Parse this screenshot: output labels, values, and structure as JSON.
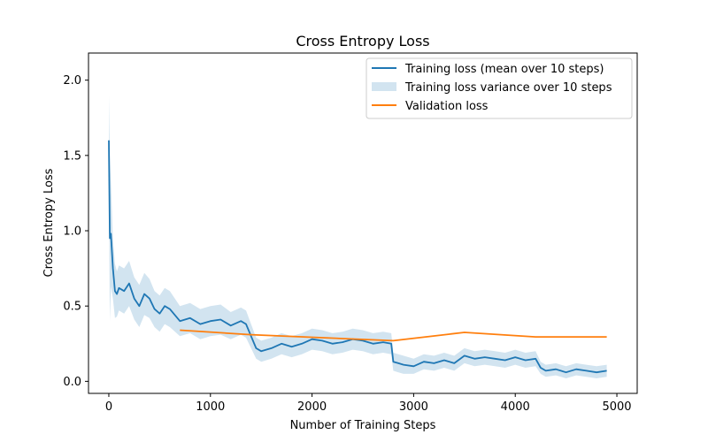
{
  "chart_data": {
    "type": "line",
    "title": "Cross Entropy Loss",
    "xlabel": "Number of Training Steps",
    "ylabel": "Cross Entropy Loss",
    "xlim": [
      -200,
      5200
    ],
    "ylim": [
      -0.08,
      2.18
    ],
    "xticks": [
      0,
      1000,
      2000,
      3000,
      4000,
      5000
    ],
    "yticks": [
      0.0,
      0.5,
      1.0,
      1.5,
      2.0
    ],
    "xtick_labels": [
      "0",
      "1000",
      "2000",
      "3000",
      "4000",
      "5000"
    ],
    "ytick_labels": [
      "0.0",
      "0.5",
      "1.0",
      "1.5",
      "2.0"
    ],
    "grid": false,
    "legend_position": "top-right",
    "colors": {
      "training": "#1f77b4",
      "variance": "#1f77b4",
      "validation": "#ff7f0e"
    },
    "series": [
      {
        "name": "Training loss (mean over 10 steps)",
        "kind": "line",
        "x": [
          0,
          10,
          20,
          40,
          60,
          80,
          100,
          150,
          200,
          250,
          300,
          350,
          400,
          450,
          500,
          550,
          600,
          700,
          800,
          900,
          1000,
          1100,
          1200,
          1300,
          1350,
          1400,
          1450,
          1500,
          1600,
          1700,
          1800,
          1900,
          2000,
          2100,
          2200,
          2300,
          2400,
          2500,
          2600,
          2700,
          2780,
          2800,
          2850,
          2900,
          3000,
          3100,
          3200,
          3300,
          3400,
          3500,
          3600,
          3700,
          3800,
          3900,
          4000,
          4100,
          4200,
          4250,
          4300,
          4400,
          4500,
          4600,
          4700,
          4800,
          4900
        ],
        "y": [
          1.6,
          0.95,
          0.98,
          0.75,
          0.6,
          0.58,
          0.62,
          0.6,
          0.65,
          0.55,
          0.5,
          0.58,
          0.55,
          0.48,
          0.45,
          0.5,
          0.48,
          0.4,
          0.42,
          0.38,
          0.4,
          0.41,
          0.37,
          0.4,
          0.38,
          0.3,
          0.22,
          0.2,
          0.22,
          0.25,
          0.23,
          0.25,
          0.28,
          0.27,
          0.25,
          0.26,
          0.28,
          0.27,
          0.25,
          0.26,
          0.25,
          0.13,
          0.12,
          0.11,
          0.1,
          0.13,
          0.12,
          0.14,
          0.12,
          0.17,
          0.15,
          0.16,
          0.15,
          0.14,
          0.16,
          0.14,
          0.15,
          0.09,
          0.07,
          0.08,
          0.06,
          0.08,
          0.07,
          0.06,
          0.07
        ]
      },
      {
        "name": "Training loss variance over 10 steps",
        "kind": "band",
        "half_width": [
          0.3,
          0.55,
          0.35,
          0.2,
          0.18,
          0.15,
          0.15,
          0.15,
          0.15,
          0.14,
          0.14,
          0.14,
          0.13,
          0.12,
          0.12,
          0.12,
          0.12,
          0.1,
          0.1,
          0.1,
          0.1,
          0.1,
          0.09,
          0.09,
          0.09,
          0.08,
          0.07,
          0.07,
          0.07,
          0.07,
          0.07,
          0.07,
          0.07,
          0.07,
          0.07,
          0.07,
          0.07,
          0.07,
          0.07,
          0.07,
          0.07,
          0.06,
          0.06,
          0.06,
          0.05,
          0.05,
          0.05,
          0.05,
          0.05,
          0.05,
          0.05,
          0.05,
          0.05,
          0.05,
          0.05,
          0.05,
          0.05,
          0.04,
          0.04,
          0.04,
          0.04,
          0.04,
          0.04,
          0.04,
          0.04
        ]
      },
      {
        "name": "Validation loss",
        "kind": "line",
        "x": [
          700,
          1400,
          2100,
          2800,
          3500,
          4200,
          4900
        ],
        "y": [
          0.34,
          0.31,
          0.29,
          0.27,
          0.325,
          0.295,
          0.295
        ]
      }
    ]
  }
}
